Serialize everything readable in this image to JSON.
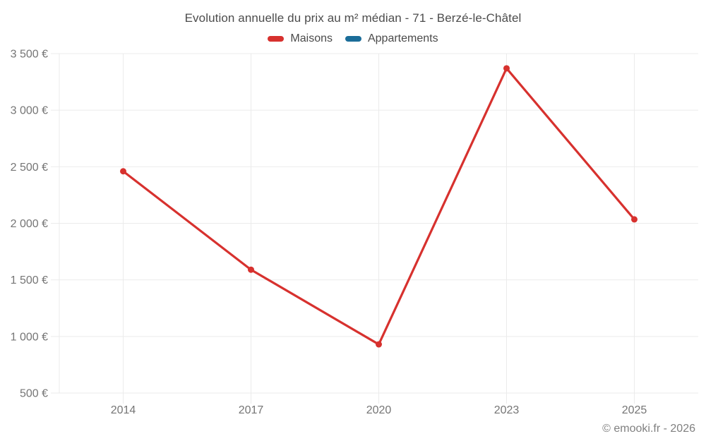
{
  "chart_data": {
    "type": "line",
    "title": "Evolution annuelle du prix au m² médian - 71 - Berzé-le-Châtel",
    "categories": [
      "2014",
      "2017",
      "2020",
      "2023",
      "2025"
    ],
    "series": [
      {
        "name": "Maisons",
        "color": "#d7312e",
        "values": [
          2460,
          1590,
          930,
          3370,
          2035
        ]
      },
      {
        "name": "Appartements",
        "color": "#1b6d99",
        "values": []
      }
    ],
    "xlabel": "",
    "ylabel": "",
    "ylim": [
      500,
      3500
    ],
    "y_ticks": [
      {
        "value": 500,
        "label": "500 €"
      },
      {
        "value": 1000,
        "label": "1 000 €"
      },
      {
        "value": 1500,
        "label": "1 500 €"
      },
      {
        "value": 2000,
        "label": "2 000 €"
      },
      {
        "value": 2500,
        "label": "2 500 €"
      },
      {
        "value": 3000,
        "label": "3 000 €"
      },
      {
        "value": 3500,
        "label": "3 500 €"
      }
    ],
    "grid": true,
    "grid_color": "#ebebeb",
    "legend_position": "top"
  },
  "footer": {
    "credit": "© emooki.fr - 2026"
  }
}
